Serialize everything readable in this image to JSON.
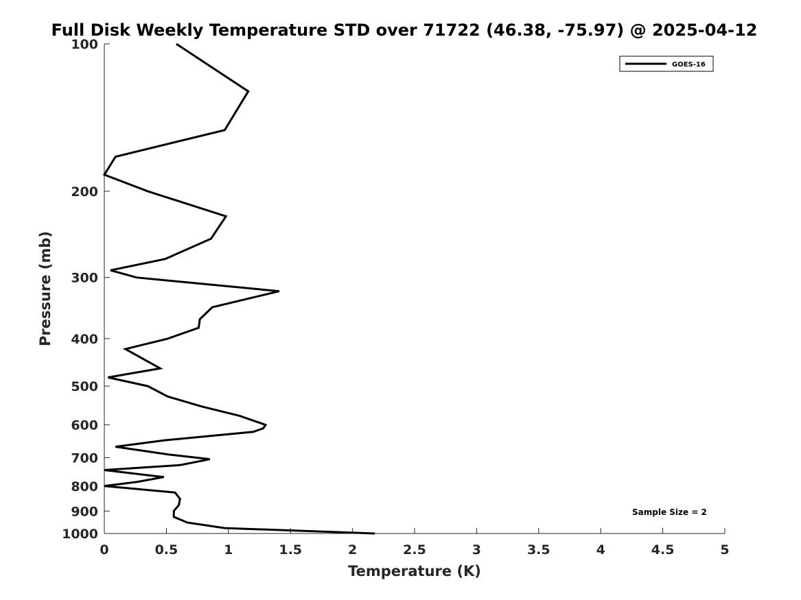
{
  "chart_data": {
    "type": "line",
    "title": "Full Disk Weekly Temperature STD over 71722 (46.38, -75.97) @ 2025-04-12",
    "xlabel": "Temperature (K)",
    "ylabel": "Pressure (mb)",
    "xlim": [
      0,
      5
    ],
    "ylim": [
      1000,
      100
    ],
    "yscale": "log",
    "xticks": [
      0,
      0.5,
      1,
      1.5,
      2,
      2.5,
      3,
      3.5,
      4,
      4.5,
      5
    ],
    "xtick_labels": [
      "0",
      "0.5",
      "1",
      "1.5",
      "2",
      "2.5",
      "3",
      "3.5",
      "4",
      "4.5",
      "5"
    ],
    "yticks": [
      100,
      200,
      300,
      400,
      500,
      600,
      700,
      800,
      900,
      1000
    ],
    "ytick_labels": [
      "100",
      "200",
      "300",
      "400",
      "500",
      "600",
      "700",
      "800",
      "900",
      "1000"
    ],
    "grid": false,
    "legend_position": "top-right",
    "annotation": "Sample Size = 2",
    "series": [
      {
        "name": "GOES-16",
        "color": "#000000",
        "points": [
          [
            0.58,
            100
          ],
          [
            1.16,
            125
          ],
          [
            0.97,
            150
          ],
          [
            0.09,
            170
          ],
          [
            0.0,
            185
          ],
          [
            0.35,
            200
          ],
          [
            0.98,
            225
          ],
          [
            0.86,
            250
          ],
          [
            0.49,
            275
          ],
          [
            0.05,
            290
          ],
          [
            0.26,
            300
          ],
          [
            1.41,
            320
          ],
          [
            0.87,
            345
          ],
          [
            0.77,
            365
          ],
          [
            0.76,
            380
          ],
          [
            0.51,
            400
          ],
          [
            0.17,
            420
          ],
          [
            0.45,
            460
          ],
          [
            0.03,
            480
          ],
          [
            0.35,
            500
          ],
          [
            0.51,
            525
          ],
          [
            0.78,
            550
          ],
          [
            1.09,
            575
          ],
          [
            1.3,
            600
          ],
          [
            1.28,
            610
          ],
          [
            1.2,
            620
          ],
          [
            0.49,
            645
          ],
          [
            0.09,
            665
          ],
          [
            0.52,
            690
          ],
          [
            0.85,
            705
          ],
          [
            0.61,
            725
          ],
          [
            0.0,
            742
          ],
          [
            0.48,
            767
          ],
          [
            0.26,
            785
          ],
          [
            0.0,
            800
          ],
          [
            0.57,
            825
          ],
          [
            0.61,
            850
          ],
          [
            0.6,
            875
          ],
          [
            0.56,
            900
          ],
          [
            0.56,
            925
          ],
          [
            0.67,
            950
          ],
          [
            0.97,
            975
          ],
          [
            2.18,
            1000
          ]
        ]
      }
    ]
  }
}
